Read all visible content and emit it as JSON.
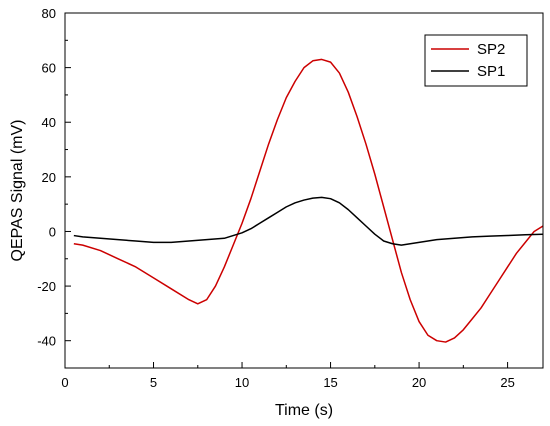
{
  "chart_data": {
    "type": "line",
    "title": "",
    "xlabel": "Time (s)",
    "ylabel": "QEPAS Signal (mV)",
    "xlim": [
      0,
      27
    ],
    "ylim": [
      -50,
      80
    ],
    "x_ticks": [
      0,
      5,
      10,
      15,
      20,
      25
    ],
    "y_ticks": [
      -40,
      -20,
      0,
      20,
      40,
      60,
      80
    ],
    "grid": false,
    "legend_position": "top-right",
    "series": [
      {
        "name": "SP2",
        "color": "#cc0000",
        "x": [
          0.5,
          1,
          2,
          3,
          4,
          5,
          6,
          7,
          7.5,
          8,
          8.5,
          9,
          9.5,
          10,
          10.5,
          11,
          11.5,
          12,
          12.5,
          13,
          13.5,
          14,
          14.5,
          15,
          15.5,
          16,
          16.5,
          17,
          17.5,
          18,
          18.5,
          19,
          19.5,
          20,
          20.5,
          21,
          21.5,
          22,
          22.5,
          23,
          23.5,
          24,
          24.5,
          25,
          25.5,
          26,
          26.5,
          27
        ],
        "y": [
          -4.5,
          -5,
          -7,
          -10,
          -13,
          -17,
          -21,
          -25,
          -26.5,
          -25,
          -20,
          -13,
          -5,
          3,
          12,
          22,
          32,
          41,
          49,
          55,
          60,
          62.5,
          63,
          62,
          58,
          51,
          42,
          32,
          21,
          9,
          -3,
          -15,
          -25,
          -33,
          -38,
          -40,
          -40.5,
          -39,
          -36,
          -32,
          -28,
          -23,
          -18,
          -13,
          -8,
          -4,
          0,
          2
        ]
      },
      {
        "name": "SP1",
        "color": "#000000",
        "x": [
          0.5,
          1,
          2,
          3,
          4,
          5,
          6,
          7,
          8,
          9,
          9.5,
          10,
          10.5,
          11,
          11.5,
          12,
          12.5,
          13,
          13.5,
          14,
          14.5,
          15,
          15.5,
          16,
          16.5,
          17,
          17.5,
          18,
          18.5,
          19,
          19.5,
          20,
          21,
          22,
          23,
          24,
          25,
          26,
          27
        ],
        "y": [
          -1.5,
          -2,
          -2.5,
          -3,
          -3.5,
          -4,
          -4,
          -3.5,
          -3,
          -2.5,
          -1.5,
          -0.5,
          1,
          3,
          5,
          7,
          9,
          10.5,
          11.5,
          12.2,
          12.5,
          12,
          10.5,
          8,
          5,
          2,
          -1,
          -3.5,
          -4.5,
          -5,
          -4.5,
          -4,
          -3,
          -2.5,
          -2,
          -1.7,
          -1.5,
          -1.2,
          -1
        ]
      }
    ]
  }
}
